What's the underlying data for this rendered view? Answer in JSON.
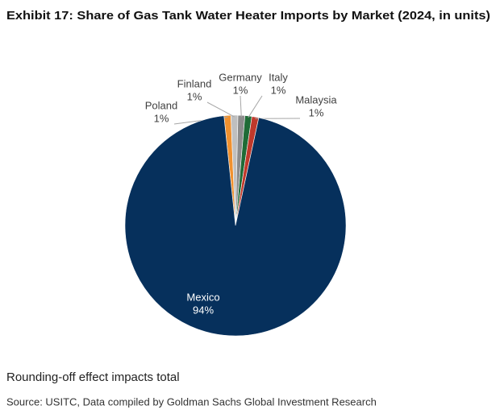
{
  "chart_data": {
    "type": "pie",
    "title": "Exhibit 17: Share of Gas Tank Water Heater Imports by Market (2024, in units)",
    "categories": [
      "Poland",
      "Finland",
      "Germany",
      "Italy",
      "Malaysia",
      "Mexico"
    ],
    "values": [
      1,
      1,
      1,
      1,
      1,
      94
    ],
    "value_labels": [
      "1%",
      "1%",
      "1%",
      "1%",
      "1%",
      "94%"
    ],
    "colors": [
      "#f0912f",
      "#bfbfbf",
      "#8c8c8c",
      "#1f6b36",
      "#c0392b",
      "#06305c"
    ],
    "note": "Rounding-off effect impacts total",
    "source": "Source: USITC, Data compiled by Goldman Sachs Global Investment Research"
  }
}
